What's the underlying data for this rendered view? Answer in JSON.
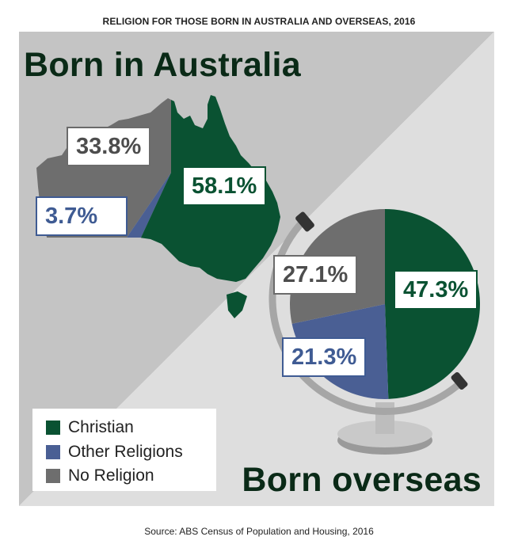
{
  "title": "RELIGION FOR THOSE BORN IN AUSTRALIA AND OVERSEAS, 2016",
  "source": "Source: ABS Census of Population and Housing, 2016",
  "colors": {
    "christian": "#0a5232",
    "other": "#4a5f94",
    "none": "#6e6e6e",
    "bg_upper": "#c4c4c4",
    "bg_lower": "#e0e0e0"
  },
  "chart_data": [
    {
      "type": "pie",
      "title": "Born in Australia",
      "series": [
        {
          "name": "Christian",
          "value": 58.1,
          "label": "58.1%"
        },
        {
          "name": "Other Religions",
          "value": 3.7,
          "label": "3.7%"
        },
        {
          "name": "No Religion",
          "value": 33.8,
          "label": "33.8%"
        }
      ]
    },
    {
      "type": "pie",
      "title": "Born overseas",
      "series": [
        {
          "name": "Christian",
          "value": 47.3,
          "label": "47.3%"
        },
        {
          "name": "Other Religions",
          "value": 21.3,
          "label": "21.3%"
        },
        {
          "name": "No Religion",
          "value": 27.1,
          "label": "27.1%"
        }
      ]
    }
  ],
  "legend": [
    {
      "label": "Christian",
      "color": "#0a5232"
    },
    {
      "label": "Other Religions",
      "color": "#4a5f94"
    },
    {
      "label": "No Religion",
      "color": "#6e6e6e"
    }
  ]
}
